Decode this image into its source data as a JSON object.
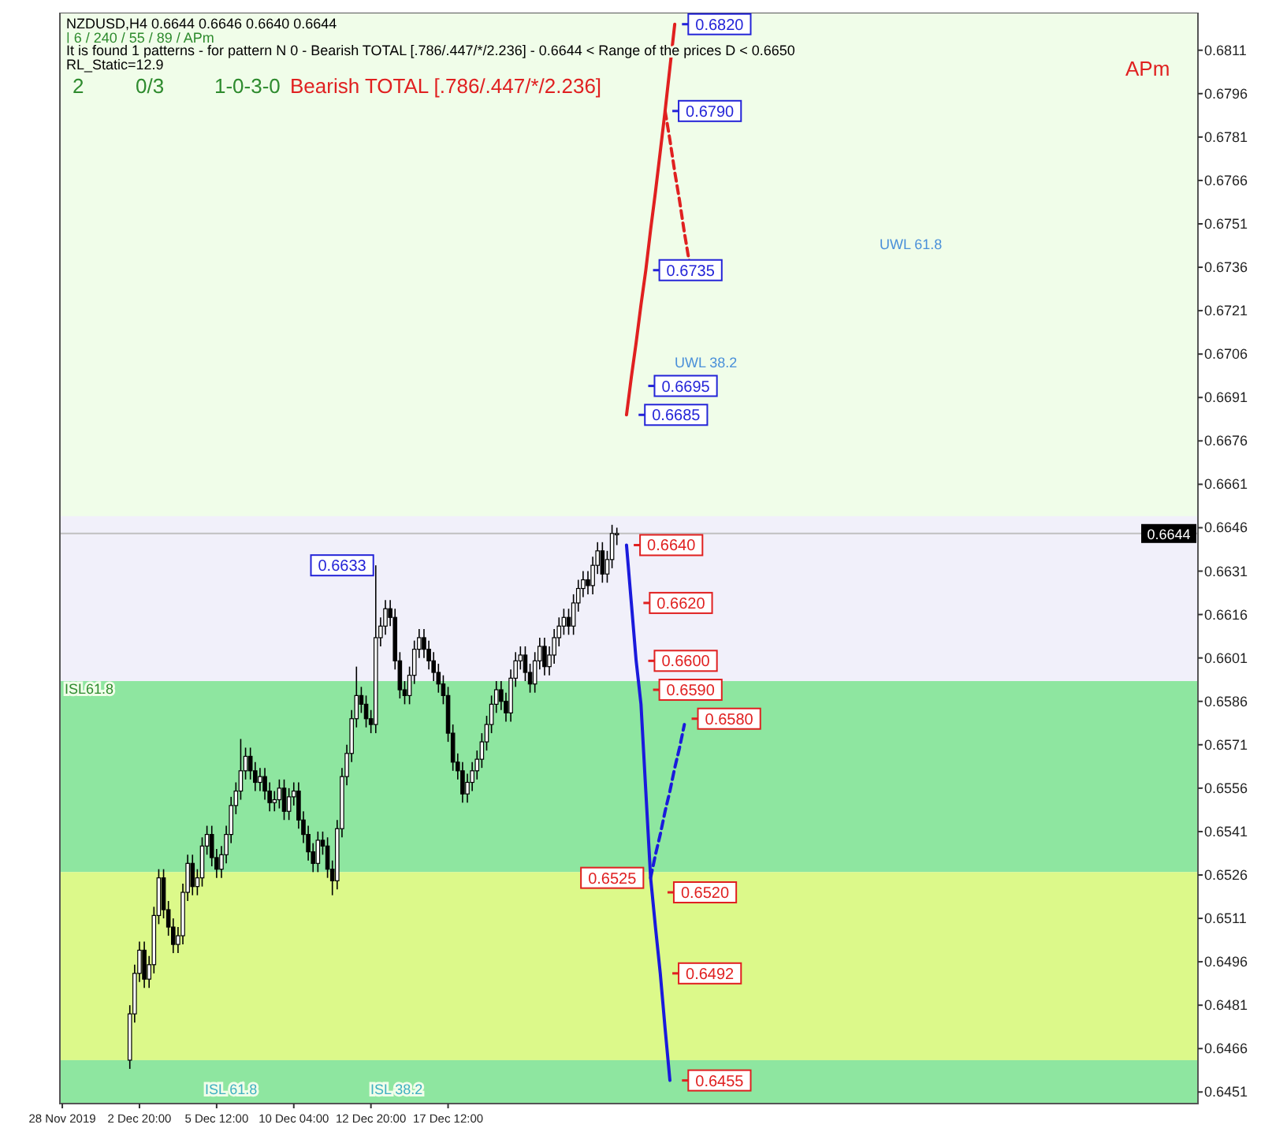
{
  "chart_data": {
    "type": "candlestick",
    "title": "NZDUSD,H4  0.6644 0.6646 0.6640 0.6644",
    "subtitle": "| 6 / 240 / 55 / 89 / APm",
    "annotations": [
      "It is found 1 patterns  -  for pattern N 0 - Bearish TOTAL [.786/.447/*/2.236] - 0.6644 < Range of the prices D < 0.6650",
      "RL_Static=12.9",
      "2",
      "0/3",
      "1-0-3-0",
      "Bearish TOTAL [.786/.447/*/2.236]",
      "APm",
      {
        "text": "0.6633",
        "y": 0.6633
      },
      {
        "text": "0.6820",
        "y": 0.682
      },
      {
        "text": "0.6790",
        "y": 0.679
      },
      {
        "text": "0.6735",
        "y": 0.6735
      },
      {
        "text": "0.6695",
        "y": 0.6695
      },
      {
        "text": "0.6685",
        "y": 0.6685
      },
      {
        "text": "0.6640",
        "y": 0.664
      },
      {
        "text": "0.6620",
        "y": 0.662
      },
      {
        "text": "0.6600",
        "y": 0.66
      },
      {
        "text": "0.6590",
        "y": 0.659
      },
      {
        "text": "0.6580",
        "y": 0.658
      },
      {
        "text": "0.6525",
        "y": 0.6525
      },
      {
        "text": "0.6520",
        "y": 0.652
      },
      {
        "text": "0.6492",
        "y": 0.6492
      },
      {
        "text": "0.6455",
        "y": 0.6455
      },
      "ISL61.8",
      "UWL 61.8",
      "UWL 38.2",
      "ISL 61.8",
      "ISL 38.2"
    ],
    "categories": [
      "28 Nov 2019",
      null,
      null,
      null,
      null,
      null,
      null,
      null,
      null,
      null,
      null,
      null,
      null,
      null,
      null,
      null,
      "2 Dec 20:00",
      null,
      null,
      null,
      null,
      null,
      null,
      null,
      null,
      null,
      null,
      null,
      null,
      null,
      null,
      null,
      "5 Dec 12:00",
      null,
      null,
      null,
      null,
      null,
      null,
      null,
      null,
      null,
      null,
      null,
      null,
      null,
      null,
      null,
      "10 Dec 04:00",
      null,
      null,
      null,
      null,
      null,
      null,
      null,
      null,
      null,
      null,
      null,
      null,
      null,
      null,
      null,
      "12 Dec 20:00",
      null,
      null,
      null,
      null,
      null,
      null,
      null,
      null,
      null,
      null,
      null,
      null,
      null,
      null,
      null,
      "17 Dec 12:00",
      null,
      null,
      null,
      null,
      null,
      null,
      null,
      null,
      null,
      null,
      null,
      null,
      null,
      null,
      null,
      null,
      null,
      null,
      null,
      null,
      null,
      null,
      null,
      null,
      null,
      null,
      null,
      null,
      null,
      null,
      null,
      null,
      null,
      null,
      null,
      null,
      null,
      null,
      null,
      null,
      null,
      null,
      null,
      null,
      null,
      null,
      null,
      null,
      null,
      null,
      null,
      null,
      null,
      null,
      null,
      null,
      null,
      null,
      null,
      null,
      null,
      null,
      null,
      null,
      null,
      null,
      null,
      null,
      null,
      null,
      null,
      null,
      null,
      null,
      null,
      null,
      null,
      null,
      null,
      null,
      null,
      null,
      null,
      null,
      null,
      null,
      null,
      null,
      null,
      null,
      null,
      null,
      null,
      null,
      null,
      null,
      null,
      null,
      null,
      null,
      null,
      null,
      null,
      null,
      null,
      null,
      null,
      null,
      null,
      null,
      null,
      null,
      null,
      null,
      null,
      null,
      null,
      null,
      null,
      null,
      null,
      null,
      null,
      null,
      null,
      null,
      null,
      null,
      null,
      null,
      null,
      null,
      null,
      null,
      null,
      null,
      null,
      null,
      null,
      null,
      null,
      null,
      null,
      null,
      null,
      null,
      null,
      null,
      null,
      null,
      null,
      null,
      null,
      null,
      null
    ],
    "color": "#000000",
    "ohlc": [
      null,
      null,
      null,
      null,
      null,
      null,
      null,
      null,
      null,
      null,
      null,
      null,
      null,
      null,
      [
        0.6462,
        0.6481,
        0.6459,
        0.6478
      ],
      [
        0.6478,
        0.6495,
        0.6475,
        0.6492
      ],
      [
        0.6492,
        0.6503,
        0.6489,
        0.65
      ],
      [
        0.65,
        0.6503,
        0.6487,
        0.649
      ],
      [
        0.649,
        0.6498,
        0.6487,
        0.6495
      ],
      [
        0.6495,
        0.6515,
        0.6492,
        0.6512
      ],
      [
        0.6512,
        0.6528,
        0.6509,
        0.6525
      ],
      [
        0.6525,
        0.6528,
        0.6511,
        0.6514
      ],
      [
        0.6514,
        0.6517,
        0.6505,
        0.6508
      ],
      [
        0.6508,
        0.6511,
        0.6499,
        0.6502
      ],
      [
        0.6502,
        0.6508,
        0.6499,
        0.6505
      ],
      [
        0.6505,
        0.6523,
        0.6502,
        0.652
      ],
      [
        0.652,
        0.6533,
        0.6517,
        0.653
      ],
      [
        0.653,
        0.6533,
        0.6519,
        0.6522
      ],
      [
        0.6522,
        0.6528,
        0.6519,
        0.6525
      ],
      [
        0.6525,
        0.6539,
        0.6522,
        0.6536
      ],
      [
        0.6536,
        0.6543,
        0.6533,
        0.654
      ],
      [
        0.654,
        0.6543,
        0.6529,
        0.6532
      ],
      [
        0.6532,
        0.6535,
        0.6525,
        0.6528
      ],
      [
        0.6528,
        0.6536,
        0.6525,
        0.6533
      ],
      [
        0.6533,
        0.6543,
        0.653,
        0.654
      ],
      [
        0.654,
        0.6553,
        0.6537,
        0.655
      ],
      [
        0.655,
        0.6558,
        0.6547,
        0.6555
      ],
      [
        0.6555,
        0.6573,
        0.6552,
        0.6562
      ],
      [
        0.6562,
        0.657,
        0.6559,
        0.6567
      ],
      [
        0.6567,
        0.657,
        0.6559,
        0.6562
      ],
      [
        0.6562,
        0.6565,
        0.6555,
        0.6558
      ],
      [
        0.6558,
        0.6563,
        0.6555,
        0.656
      ],
      [
        0.656,
        0.6563,
        0.6552,
        0.6555
      ],
      [
        0.6555,
        0.6558,
        0.6548,
        0.6551
      ],
      [
        0.6551,
        0.6555,
        0.6548,
        0.6552
      ],
      [
        0.6552,
        0.6559,
        0.6549,
        0.6556
      ],
      [
        0.6556,
        0.6559,
        0.6545,
        0.6548
      ],
      [
        0.6548,
        0.6556,
        0.6545,
        0.6553
      ],
      [
        0.6553,
        0.6558,
        0.655,
        0.6555
      ],
      [
        0.6555,
        0.6558,
        0.6542,
        0.6545
      ],
      [
        0.6545,
        0.6548,
        0.6537,
        0.654
      ],
      [
        0.654,
        0.6543,
        0.6531,
        0.6534
      ],
      [
        0.6534,
        0.6537,
        0.6527,
        0.653
      ],
      [
        0.653,
        0.6541,
        0.6527,
        0.6538
      ],
      [
        0.6538,
        0.6541,
        0.6533,
        0.6536
      ],
      [
        0.6536,
        0.6539,
        0.6525,
        0.6528
      ],
      [
        0.6528,
        0.6531,
        0.6519,
        0.6524
      ],
      [
        0.6524,
        0.6545,
        0.6521,
        0.6542
      ],
      [
        0.6542,
        0.6563,
        0.6539,
        0.656
      ],
      [
        0.656,
        0.6571,
        0.6557,
        0.6568
      ],
      [
        0.6568,
        0.6583,
        0.6565,
        0.658
      ],
      [
        0.658,
        0.6598,
        0.6577,
        0.6588
      ],
      [
        0.6588,
        0.6591,
        0.6582,
        0.6585
      ],
      [
        0.6585,
        0.6588,
        0.6577,
        0.658
      ],
      [
        0.658,
        0.6583,
        0.6575,
        0.6578
      ],
      [
        0.6578,
        0.6633,
        0.6575,
        0.6608
      ],
      [
        0.6608,
        0.6615,
        0.6605,
        0.6612
      ],
      [
        0.6612,
        0.6621,
        0.6609,
        0.6618
      ],
      [
        0.6618,
        0.6621,
        0.6612,
        0.6615
      ],
      [
        0.6615,
        0.6618,
        0.6597,
        0.66
      ],
      [
        0.66,
        0.6603,
        0.6587,
        0.659
      ],
      [
        0.659,
        0.6593,
        0.6585,
        0.6588
      ],
      [
        0.6588,
        0.6598,
        0.6585,
        0.6595
      ],
      [
        0.6595,
        0.6607,
        0.6592,
        0.6604
      ],
      [
        0.6604,
        0.6611,
        0.6601,
        0.6608
      ],
      [
        0.6608,
        0.6611,
        0.6601,
        0.6604
      ],
      [
        0.6604,
        0.6607,
        0.6597,
        0.66
      ],
      [
        0.66,
        0.6603,
        0.6593,
        0.6596
      ],
      [
        0.6596,
        0.6599,
        0.6589,
        0.6592
      ],
      [
        0.6592,
        0.6595,
        0.6585,
        0.6588
      ],
      [
        0.6588,
        0.6591,
        0.6572,
        0.6575
      ],
      [
        0.6575,
        0.6578,
        0.6562,
        0.6565
      ],
      [
        0.6565,
        0.6568,
        0.6559,
        0.6562
      ],
      [
        0.6562,
        0.6565,
        0.6551,
        0.6554
      ],
      [
        0.6554,
        0.6561,
        0.6551,
        0.6558
      ],
      [
        0.6558,
        0.6565,
        0.6555,
        0.6562
      ],
      [
        0.6562,
        0.6569,
        0.6559,
        0.6566
      ],
      [
        0.6566,
        0.6575,
        0.6563,
        0.6572
      ],
      [
        0.6572,
        0.6581,
        0.6569,
        0.6578
      ],
      [
        0.6578,
        0.6588,
        0.6575,
        0.6585
      ],
      [
        0.6585,
        0.6593,
        0.6582,
        0.659
      ],
      [
        0.659,
        0.6593,
        0.6583,
        0.6586
      ],
      [
        0.6586,
        0.6589,
        0.6579,
        0.6582
      ],
      [
        0.6582,
        0.6597,
        0.6579,
        0.6594
      ],
      [
        0.6594,
        0.6603,
        0.6591,
        0.66
      ],
      [
        0.66,
        0.6605,
        0.6597,
        0.6602
      ],
      [
        0.6602,
        0.6605,
        0.6593,
        0.6596
      ],
      [
        0.6596,
        0.6599,
        0.6589,
        0.6592
      ],
      [
        0.6592,
        0.6603,
        0.6589,
        0.66
      ],
      [
        0.66,
        0.6608,
        0.6597,
        0.6605
      ],
      [
        0.6605,
        0.6608,
        0.6595,
        0.6598
      ],
      [
        0.6598,
        0.6605,
        0.6595,
        0.6602
      ],
      [
        0.6602,
        0.6611,
        0.6599,
        0.6608
      ],
      [
        0.6608,
        0.6615,
        0.6605,
        0.6612
      ],
      [
        0.6612,
        0.6618,
        0.6609,
        0.6615
      ],
      [
        0.6615,
        0.6618,
        0.6609,
        0.6612
      ],
      [
        0.6612,
        0.6623,
        0.6609,
        0.662
      ],
      [
        0.662,
        0.6628,
        0.6617,
        0.6625
      ],
      [
        0.6625,
        0.6631,
        0.6622,
        0.6628
      ],
      [
        0.6628,
        0.6631,
        0.6623,
        0.6626
      ],
      [
        0.6626,
        0.6636,
        0.6623,
        0.6633
      ],
      [
        0.6633,
        0.6641,
        0.663,
        0.6638
      ],
      [
        0.6638,
        0.6641,
        0.6627,
        0.663
      ],
      [
        0.663,
        0.6638,
        0.6627,
        0.6635
      ],
      [
        0.6635,
        0.6647,
        0.6632,
        0.6644
      ],
      [
        0.6644,
        0.6646,
        0.664,
        0.6644
      ],
      null,
      null,
      null,
      null,
      null,
      null,
      null,
      null,
      null,
      null,
      null,
      null,
      null,
      null,
      null,
      null,
      null,
      null,
      null,
      null,
      null,
      null,
      null,
      null,
      null,
      null,
      null,
      null,
      null,
      null,
      null,
      null,
      null,
      null,
      null,
      null,
      null,
      null,
      null,
      null,
      null,
      null,
      null,
      null,
      null,
      null,
      null,
      null,
      null,
      null,
      null,
      null,
      null,
      null,
      null,
      null,
      null,
      null,
      null,
      null,
      null,
      null,
      null,
      null,
      null,
      null,
      null,
      null,
      null,
      null,
      null,
      null,
      null,
      null,
      null,
      null,
      null,
      null,
      null,
      null,
      null,
      null,
      null,
      null,
      null,
      null,
      null,
      null,
      null,
      null,
      null,
      null,
      null,
      null,
      null,
      null,
      null,
      null,
      null,
      null,
      null,
      null,
      null,
      null,
      null,
      null,
      null,
      null,
      null,
      null,
      null,
      null,
      null,
      null,
      null,
      null,
      null,
      null,
      null,
      null
    ],
    "series": [
      {
        "type": "line",
        "color": "#e02020",
        "values": [
          null,
          null,
          null,
          null,
          null,
          null,
          null,
          null,
          null,
          null,
          null,
          null,
          null,
          null,
          null,
          null,
          null,
          null,
          null,
          null,
          null,
          null,
          null,
          null,
          null,
          null,
          null,
          null,
          null,
          null,
          null,
          null,
          null,
          null,
          null,
          null,
          null,
          null,
          null,
          null,
          null,
          null,
          null,
          null,
          null,
          null,
          null,
          null,
          null,
          null,
          null,
          null,
          null,
          null,
          null,
          null,
          null,
          null,
          null,
          null,
          null,
          null,
          null,
          null,
          null,
          null,
          null,
          null,
          null,
          null,
          null,
          null,
          null,
          null,
          null,
          null,
          null,
          null,
          null,
          null,
          null,
          null,
          null,
          null,
          null,
          null,
          null,
          null,
          null,
          null,
          null,
          null,
          null,
          null,
          null,
          null,
          null,
          null,
          null,
          null,
          null,
          null,
          null,
          null,
          null,
          null,
          null,
          null,
          null,
          null,
          null,
          null,
          null,
          null,
          null,
          null,
          null,
          0.6685,
          0.6698,
          0.671,
          0.6723,
          0.6735,
          0.6749,
          0.6762,
          0.6776,
          0.679,
          0.6805,
          0.682,
          null,
          null,
          null,
          null,
          null,
          null,
          null,
          null,
          null,
          null,
          null,
          null,
          null,
          null,
          null,
          null,
          null,
          null,
          null,
          null,
          null,
          null,
          null,
          null,
          null,
          null,
          null,
          null,
          null,
          null,
          null,
          null,
          null,
          null,
          null,
          null,
          null,
          null,
          null,
          null,
          null,
          null,
          null,
          null,
          null,
          null,
          null,
          null,
          null,
          null,
          null,
          null,
          null,
          null,
          null,
          null,
          null,
          null,
          null,
          null,
          null,
          null,
          null,
          null,
          null,
          null,
          null,
          null,
          null,
          null,
          null,
          null,
          null,
          null,
          null,
          null,
          null,
          null,
          null,
          null,
          null,
          null,
          null,
          null,
          null,
          null,
          null,
          null,
          null,
          null,
          null,
          null,
          null,
          null,
          null,
          null,
          null,
          null,
          null,
          null,
          null,
          null,
          null,
          null,
          null,
          null,
          null,
          null
        ]
      },
      {
        "type": "line",
        "color": "#e02020",
        "line_style": "dashed",
        "values": [
          null,
          null,
          null,
          null,
          null,
          null,
          null,
          null,
          null,
          null,
          null,
          null,
          null,
          null,
          null,
          null,
          null,
          null,
          null,
          null,
          null,
          null,
          null,
          null,
          null,
          null,
          null,
          null,
          null,
          null,
          null,
          null,
          null,
          null,
          null,
          null,
          null,
          null,
          null,
          null,
          null,
          null,
          null,
          null,
          null,
          null,
          null,
          null,
          null,
          null,
          null,
          null,
          null,
          null,
          null,
          null,
          null,
          null,
          null,
          null,
          null,
          null,
          null,
          null,
          null,
          null,
          null,
          null,
          null,
          null,
          null,
          null,
          null,
          null,
          null,
          null,
          null,
          null,
          null,
          null,
          null,
          null,
          null,
          null,
          null,
          null,
          null,
          null,
          null,
          null,
          null,
          null,
          null,
          null,
          null,
          null,
          null,
          null,
          null,
          null,
          null,
          null,
          null,
          null,
          null,
          null,
          null,
          null,
          null,
          null,
          null,
          null,
          null,
          null,
          null,
          null,
          null,
          null,
          null,
          null,
          null,
          null,
          null,
          null,
          null,
          0.679,
          0.678,
          0.6769,
          0.6759,
          0.6748,
          0.6738,
          null,
          null,
          null,
          null,
          null,
          null,
          null,
          null,
          null,
          null,
          null,
          null,
          null,
          null,
          null,
          null,
          null,
          null,
          null,
          null,
          null,
          null,
          null,
          null,
          null,
          null,
          null,
          null,
          null,
          null,
          null,
          null,
          null,
          null,
          null,
          null,
          null,
          null,
          null,
          null,
          null,
          null,
          null,
          null,
          null,
          null,
          null,
          null,
          null,
          null,
          null,
          null,
          null,
          null,
          null,
          null,
          null,
          null,
          null,
          null,
          null,
          null,
          null,
          null,
          null,
          null,
          null,
          null,
          null,
          null,
          null,
          null,
          null,
          null,
          null,
          null,
          null,
          null,
          null,
          null,
          null,
          null,
          null,
          null,
          null,
          null,
          null,
          null,
          null,
          null,
          null,
          null,
          null,
          null,
          null,
          null,
          null,
          null,
          null,
          null,
          null,
          null,
          null,
          null,
          null
        ]
      },
      {
        "type": "line",
        "color": "#1a1adc",
        "values": [
          null,
          null,
          null,
          null,
          null,
          null,
          null,
          null,
          null,
          null,
          null,
          null,
          null,
          null,
          null,
          null,
          null,
          null,
          null,
          null,
          null,
          null,
          null,
          null,
          null,
          null,
          null,
          null,
          null,
          null,
          null,
          null,
          null,
          null,
          null,
          null,
          null,
          null,
          null,
          null,
          null,
          null,
          null,
          null,
          null,
          null,
          null,
          null,
          null,
          null,
          null,
          null,
          null,
          null,
          null,
          null,
          null,
          null,
          null,
          null,
          null,
          null,
          null,
          null,
          null,
          null,
          null,
          null,
          null,
          null,
          null,
          null,
          null,
          null,
          null,
          null,
          null,
          null,
          null,
          null,
          null,
          null,
          null,
          null,
          null,
          null,
          null,
          null,
          null,
          null,
          null,
          null,
          null,
          null,
          null,
          null,
          null,
          null,
          null,
          null,
          null,
          null,
          null,
          null,
          null,
          null,
          null,
          null,
          null,
          null,
          null,
          null,
          null,
          null,
          null,
          null,
          null,
          0.664,
          0.662,
          0.66,
          0.6585,
          0.6555,
          0.6525,
          0.6508,
          0.6492,
          0.6473,
          0.6455,
          null,
          null,
          null,
          null,
          null,
          null,
          null,
          null,
          null,
          null,
          null,
          null,
          null,
          null,
          null,
          null,
          null,
          null,
          null,
          null,
          null,
          null,
          null,
          null,
          null,
          null,
          null,
          null,
          null,
          null,
          null,
          null,
          null,
          null,
          null,
          null,
          null,
          null,
          null,
          null,
          null,
          null,
          null,
          null,
          null,
          null,
          null,
          null,
          null,
          null,
          null,
          null,
          null,
          null,
          null,
          null,
          null,
          null,
          null,
          null,
          null,
          null,
          null,
          null,
          null,
          null,
          null,
          null,
          null,
          null,
          null,
          null,
          null,
          null,
          null,
          null,
          null,
          null,
          null,
          null,
          null,
          null,
          null,
          null,
          null,
          null,
          null,
          null,
          null,
          null,
          null,
          null,
          null,
          null,
          null,
          null,
          null,
          null,
          null,
          null,
          null,
          null,
          null,
          null,
          null,
          null,
          null,
          null,
          null
        ]
      },
      {
        "type": "line",
        "color": "#1a1adc",
        "line_style": "dashed",
        "values": [
          null,
          null,
          null,
          null,
          null,
          null,
          null,
          null,
          null,
          null,
          null,
          null,
          null,
          null,
          null,
          null,
          null,
          null,
          null,
          null,
          null,
          null,
          null,
          null,
          null,
          null,
          null,
          null,
          null,
          null,
          null,
          null,
          null,
          null,
          null,
          null,
          null,
          null,
          null,
          null,
          null,
          null,
          null,
          null,
          null,
          null,
          null,
          null,
          null,
          null,
          null,
          null,
          null,
          null,
          null,
          null,
          null,
          null,
          null,
          null,
          null,
          null,
          null,
          null,
          null,
          null,
          null,
          null,
          null,
          null,
          null,
          null,
          null,
          null,
          null,
          null,
          null,
          null,
          null,
          null,
          null,
          null,
          null,
          null,
          null,
          null,
          null,
          null,
          null,
          null,
          null,
          null,
          null,
          null,
          null,
          null,
          null,
          null,
          null,
          null,
          null,
          null,
          null,
          null,
          null,
          null,
          null,
          null,
          null,
          null,
          null,
          null,
          null,
          null,
          null,
          null,
          null,
          null,
          null,
          null,
          null,
          null,
          0.6525,
          0.6533,
          0.654,
          0.6548,
          0.6555,
          0.6563,
          0.657,
          0.6578,
          null,
          null,
          null,
          null,
          null,
          null,
          null,
          null,
          null,
          null,
          null,
          null,
          null,
          null,
          null,
          null,
          null,
          null,
          null,
          null,
          null,
          null,
          null,
          null,
          null,
          null,
          null,
          null,
          null,
          null,
          null,
          null,
          null,
          null,
          null,
          null,
          null,
          null,
          null,
          null,
          null,
          null,
          null,
          null,
          null,
          null,
          null,
          null,
          null,
          null,
          null,
          null,
          null,
          null,
          null,
          null,
          null,
          null,
          null,
          null,
          null,
          null,
          null,
          null,
          null,
          null,
          null,
          null,
          null,
          null,
          null,
          null,
          null,
          null,
          null,
          null,
          null,
          null,
          null,
          null,
          null,
          null,
          null,
          null,
          null,
          null,
          null,
          null,
          null,
          null,
          null,
          null,
          null,
          null,
          null,
          null,
          null,
          null,
          null,
          null,
          null,
          null,
          null,
          null,
          null,
          null
        ]
      }
    ],
    "bands": [
      {
        "axis": "y",
        "from": 0.6593,
        "to": 0.665,
        "color": "#f1f0fa"
      },
      {
        "axis": "y",
        "from": 0.6527,
        "to": 0.6593,
        "color": "#8ee6a0"
      },
      {
        "axis": "y",
        "from": 0.6462,
        "to": 0.6527,
        "color": "#dcf98a"
      },
      {
        "axis": "y",
        "from": 0.6447,
        "to": 0.6462,
        "color": "#8ee6a0"
      }
    ],
    "ref_lines": [
      {
        "axis": "y",
        "value": 0.6644,
        "label": "0.6644",
        "color": "#c0c0c0"
      }
    ],
    "ylim": [
      0.6447,
      0.6824
    ],
    "yticks": [
      0.6451,
      0.6466,
      0.6481,
      0.6496,
      0.6511,
      0.6526,
      0.6541,
      0.6556,
      0.6571,
      0.6586,
      0.6601,
      0.6616,
      0.6631,
      0.6646,
      0.6661,
      0.6676,
      0.6691,
      0.6706,
      0.6721,
      0.6736,
      0.6751,
      0.6766,
      0.6781,
      0.6796,
      0.6811
    ]
  }
}
